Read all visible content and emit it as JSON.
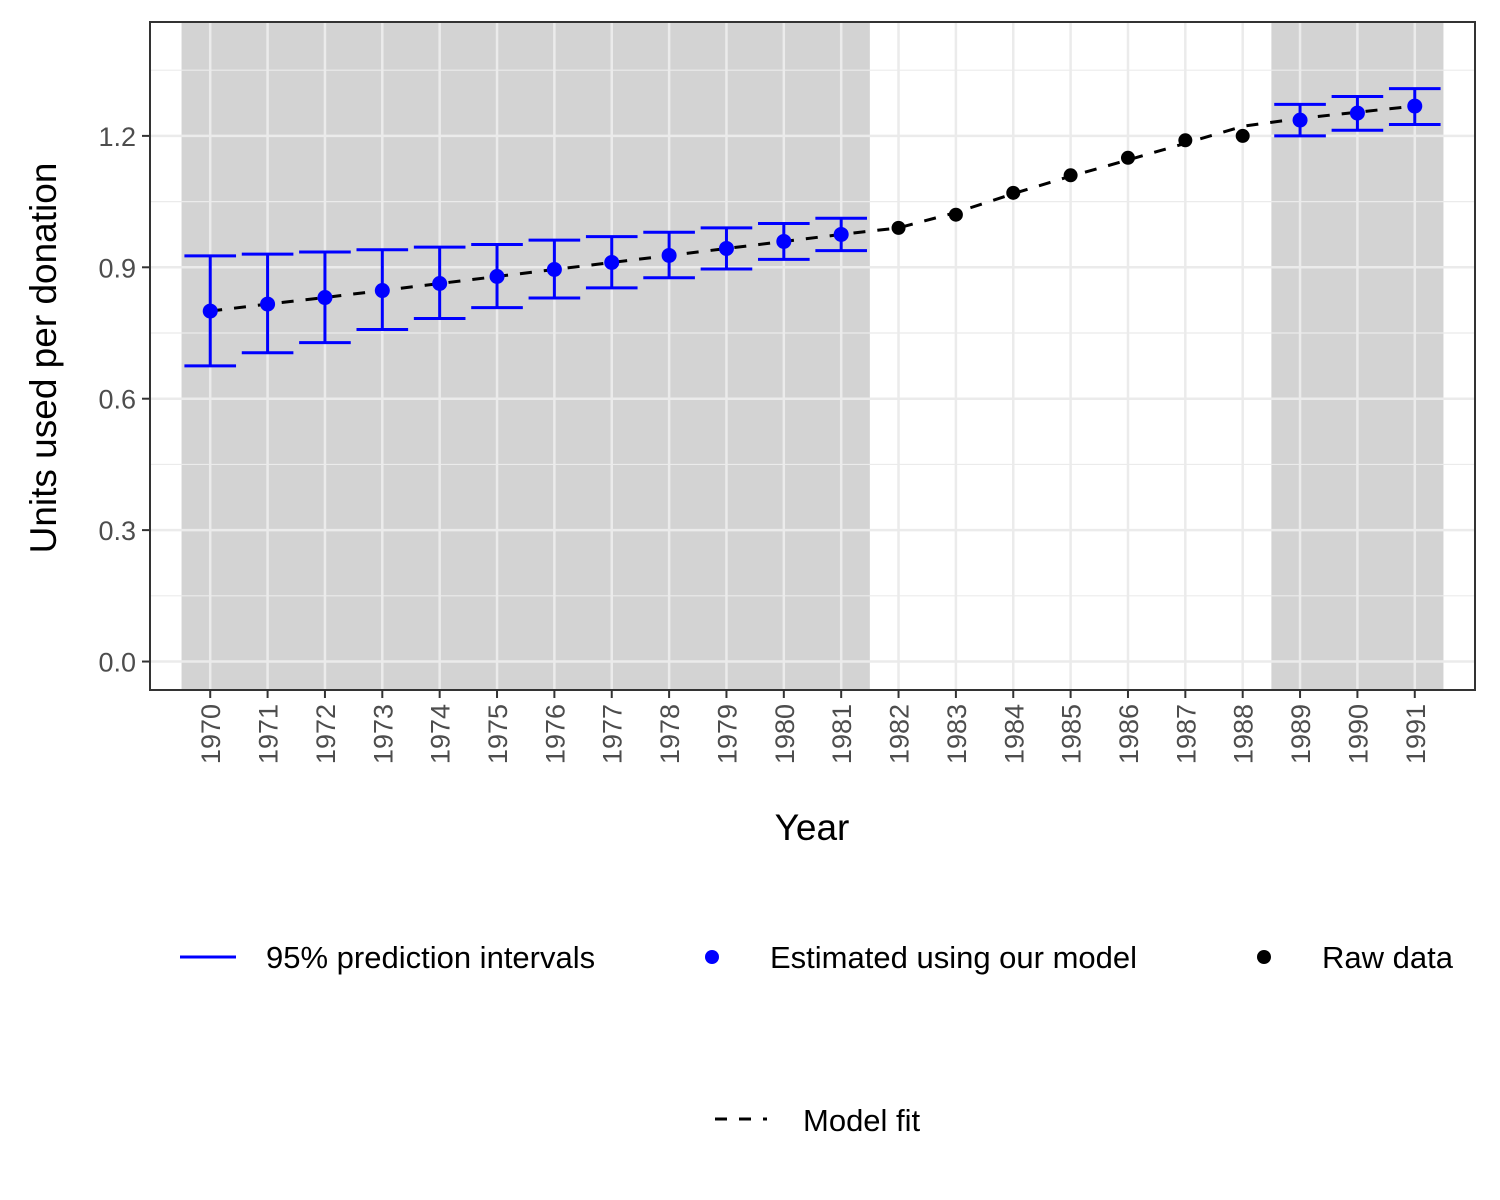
{
  "chart_data": {
    "type": "line",
    "xlabel": "Year",
    "ylabel": "Units used per donation",
    "ylim": [
      -0.065,
      1.46
    ],
    "yticks": [
      0.0,
      0.3,
      0.6,
      0.9,
      1.2
    ],
    "ytick_labels": [
      "0.0",
      "0.3",
      "0.6",
      "0.9",
      "1.2"
    ],
    "xlim": [
      1968.95,
      1992.05
    ],
    "x_tick_labels": [
      "1970",
      "1971",
      "1972",
      "1973",
      "1974",
      "1975",
      "1976",
      "1977",
      "1978",
      "1979",
      "1980",
      "1981",
      "1982",
      "1983",
      "1984",
      "1985",
      "1986",
      "1987",
      "1988",
      "1989",
      "1990",
      "1991"
    ],
    "grid": true,
    "legend_position": "bottom",
    "shaded_regions": [
      [
        1969.5,
        1981.5
      ],
      [
        1988.5,
        1991.5
      ]
    ],
    "colors": {
      "estimated": "#0000ff",
      "raw": "#000000",
      "shade": "#d3d3d3",
      "grid": "#ebebeb",
      "panel_border": "#333333",
      "tick": "#4d4d4d"
    },
    "series": [
      {
        "name": "Estimated using our model",
        "kind": "points-with-intervals",
        "x": [
          1970,
          1971,
          1972,
          1973,
          1974,
          1975,
          1976,
          1977,
          1978,
          1979,
          1980,
          1981,
          1989,
          1990,
          1991
        ],
        "y": [
          0.8,
          0.816,
          0.831,
          0.847,
          0.863,
          0.879,
          0.895,
          0.911,
          0.927,
          0.943,
          0.959,
          0.975,
          1.236,
          1.252,
          1.268
        ],
        "lower": [
          0.675,
          0.705,
          0.728,
          0.758,
          0.783,
          0.808,
          0.83,
          0.853,
          0.876,
          0.896,
          0.918,
          0.938,
          1.2,
          1.213,
          1.226
        ],
        "upper": [
          0.926,
          0.93,
          0.935,
          0.94,
          0.946,
          0.952,
          0.962,
          0.97,
          0.98,
          0.99,
          1.0,
          1.012,
          1.272,
          1.29,
          1.308
        ]
      },
      {
        "name": "Raw data",
        "kind": "points",
        "x": [
          1982,
          1983,
          1984,
          1985,
          1986,
          1987,
          1988
        ],
        "y": [
          0.99,
          1.02,
          1.07,
          1.11,
          1.15,
          1.19,
          1.2
        ]
      },
      {
        "name": "Model fit",
        "kind": "dashed-line",
        "x": [
          1970,
          1971,
          1972,
          1973,
          1974,
          1975,
          1976,
          1977,
          1978,
          1979,
          1980,
          1981,
          1982,
          1983,
          1984,
          1985,
          1986,
          1987,
          1988,
          1989,
          1990,
          1991
        ],
        "y": [
          0.8,
          0.816,
          0.831,
          0.847,
          0.863,
          0.879,
          0.895,
          0.911,
          0.927,
          0.943,
          0.959,
          0.975,
          0.99,
          1.025,
          1.068,
          1.108,
          1.145,
          1.183,
          1.222,
          1.24,
          1.254,
          1.268
        ]
      }
    ],
    "legend": {
      "intervals_label": "95% prediction intervals",
      "estimated_label": "Estimated using our model",
      "raw_label": "Raw data",
      "fit_label": "Model fit"
    }
  }
}
